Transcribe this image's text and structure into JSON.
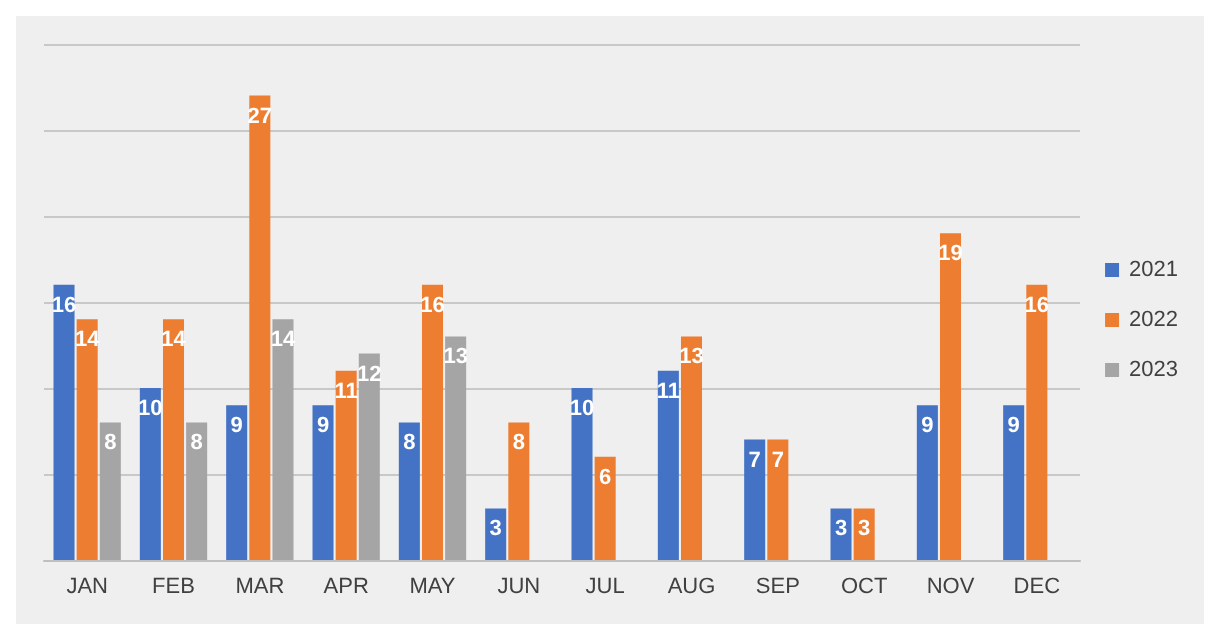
{
  "chart_data": {
    "type": "bar",
    "categories": [
      "JAN",
      "FEB",
      "MAR",
      "APR",
      "MAY",
      "JUN",
      "JUL",
      "AUG",
      "SEP",
      "OCT",
      "NOV",
      "DEC"
    ],
    "series": [
      {
        "name": "2021",
        "color": "#4472c4",
        "values": [
          16,
          10,
          9,
          9,
          8,
          3,
          10,
          11,
          7,
          3,
          9,
          9
        ]
      },
      {
        "name": "2022",
        "color": "#ed7d31",
        "values": [
          14,
          14,
          27,
          11,
          16,
          8,
          6,
          13,
          7,
          3,
          19,
          16
        ]
      },
      {
        "name": "2023",
        "color": "#a5a5a5",
        "values": [
          8,
          8,
          14,
          12,
          13,
          null,
          null,
          null,
          null,
          null,
          null,
          null
        ]
      }
    ],
    "ylim": [
      0,
      30
    ],
    "yticks": [
      {
        "value": 0,
        "label": null
      },
      {
        "value": 5,
        "label": null
      },
      {
        "value": 10,
        "label": null
      },
      {
        "value": 15,
        "label": null
      },
      {
        "value": 20,
        "label": null
      },
      {
        "value": 25,
        "label": null
      },
      {
        "value": 30,
        "label": null
      }
    ],
    "grid": "y",
    "legend": "right",
    "tick_labels": "x",
    "data_labels": true
  }
}
